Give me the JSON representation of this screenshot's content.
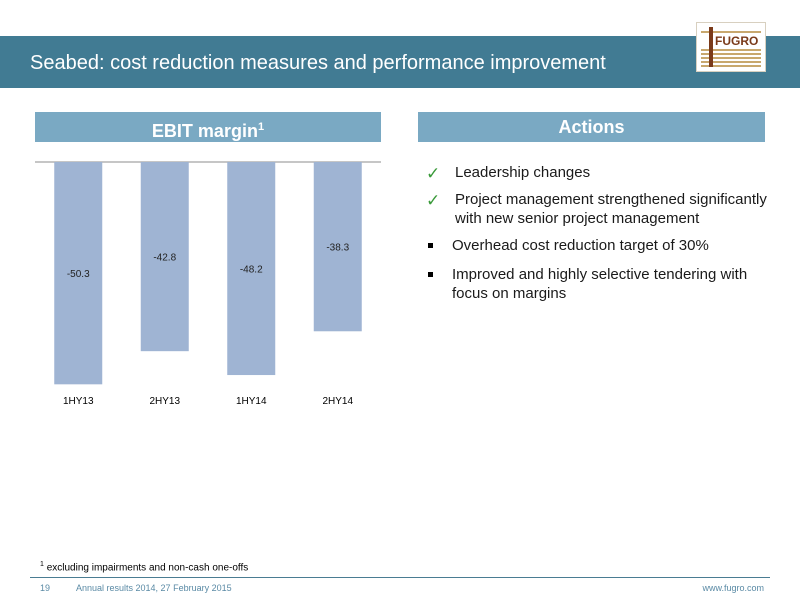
{
  "slide": {
    "title": "Seabed: cost reduction measures and performance improvement",
    "logo_text": "FUGRO"
  },
  "ebit_panel": {
    "header": "EBIT margin",
    "header_sup": "1"
  },
  "actions_panel": {
    "header": "Actions",
    "items": [
      {
        "marker": "check",
        "text": "Leadership changes"
      },
      {
        "marker": "check",
        "text": "Project management strengthened significantly with new senior project management"
      },
      {
        "marker": "square",
        "text": "Overhead cost reduction target of 30%"
      },
      {
        "marker": "square",
        "text": "Improved and highly selective tendering with focus on margins"
      }
    ]
  },
  "chart_data": {
    "type": "bar",
    "categories": [
      "1HY13",
      "2HY13",
      "1HY14",
      "2HY14"
    ],
    "values": [
      -50.3,
      -42.8,
      -48.2,
      -38.3
    ],
    "data_labels": [
      "-50.3",
      "-42.8",
      "-48.2",
      "-38.3"
    ],
    "bar_color": "#9fb4d3",
    "ylim": [
      -55,
      0
    ],
    "grid": false,
    "legend": "none"
  },
  "footnote": {
    "sup": "1",
    "text": "excluding impairments and non-cash one-offs"
  },
  "footer": {
    "page": "19",
    "left_text": "Annual results 2014, 27 February 2015",
    "right_text": "www.fugro.com"
  },
  "colors": {
    "title_bar": "#417b93",
    "panel_header": "#7aa9c3",
    "check": "#3a9a3a",
    "footer_text": "#5a8aa5"
  }
}
